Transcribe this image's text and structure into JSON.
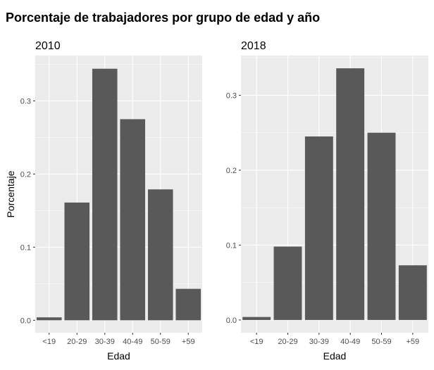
{
  "title": "Porcentaje de trabajadores por grupo de edad y año",
  "colors": {
    "panel_background": "#ebebeb",
    "grid_major": "#ffffff",
    "bar_fill": "#595959",
    "tick_text": "#4d4d4d"
  },
  "chart_data": [
    {
      "type": "bar",
      "title": "2010",
      "categories": [
        "<19",
        "20-29",
        "30-39",
        "40-49",
        "50-59",
        "+59"
      ],
      "values": [
        0.004,
        0.161,
        0.344,
        0.275,
        0.179,
        0.043
      ],
      "xlabel": "Edad",
      "ylabel": "Porcentaje",
      "ylim": [
        -0.017,
        0.362
      ],
      "yticks": [
        0.0,
        0.1,
        0.2,
        0.3
      ],
      "ytick_labels": [
        "0.0",
        "0.1",
        "0.2",
        "0.3"
      ],
      "grid": true,
      "legend": "none"
    },
    {
      "type": "bar",
      "title": "2018",
      "categories": [
        "<19",
        "20-29",
        "30-39",
        "40-49",
        "50-59",
        "+59"
      ],
      "values": [
        0.004,
        0.098,
        0.245,
        0.336,
        0.25,
        0.073
      ],
      "xlabel": "Edad",
      "ylabel": "",
      "ylim": [
        -0.017,
        0.353
      ],
      "yticks": [
        0.0,
        0.1,
        0.2,
        0.3
      ],
      "ytick_labels": [
        "0.0",
        "0.1",
        "0.2",
        "0.3"
      ],
      "grid": true,
      "legend": "none"
    }
  ]
}
